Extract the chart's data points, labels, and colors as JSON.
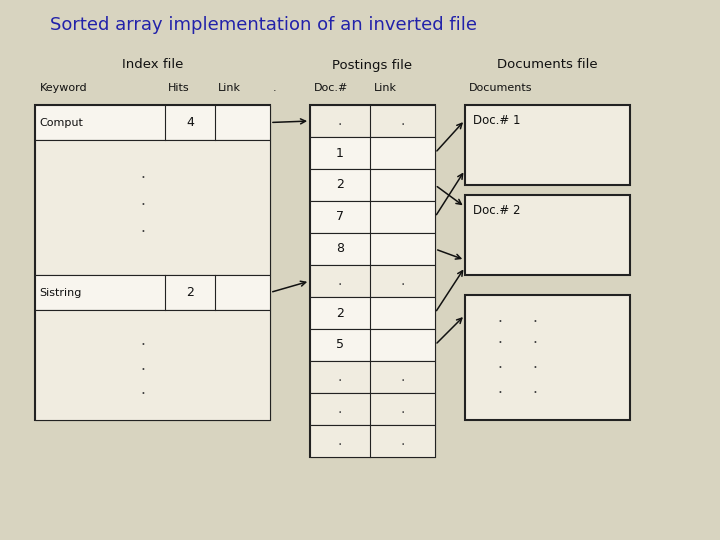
{
  "title": "Sorted array implementation of an inverted file",
  "title_color": "#2222aa",
  "title_fontsize": 13,
  "bg_color": "#d8d4c0",
  "index_file_label": "Index file",
  "index_keyword_label": "Keyword",
  "index_hits_label": "Hits",
  "index_link_label": "Link",
  "dot_after_link": ".",
  "postings_file_label": "Postings file",
  "postings_doc_label": "Doc.#",
  "postings_link_label": "Link",
  "documents_file_label": "Documents file",
  "documents_label": "Documents",
  "doc1_label": "Doc.# 1",
  "doc2_label": "Doc.# 2",
  "cell_bg": "#f0ece0",
  "highlight_bg": "#f8f5ee",
  "border_color": "#222222",
  "text_color": "#111111",
  "dot_color": "#444444",
  "arrow_color": "#111111"
}
